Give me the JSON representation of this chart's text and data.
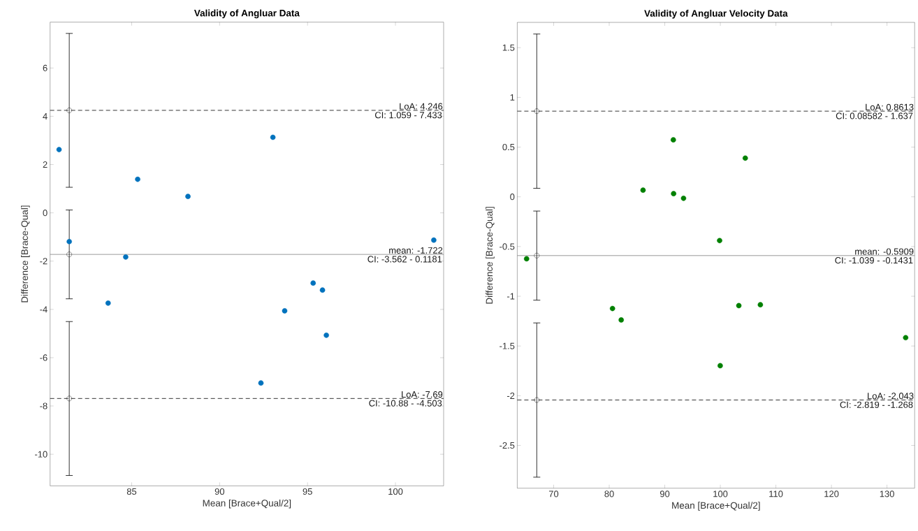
{
  "chart_data": [
    {
      "type": "scatter",
      "title": "Validity of Angluar Data",
      "xlabel": "Mean [Brace+Qual/2]",
      "ylabel": "Difference [Brace-Qual]",
      "xlim": [
        80.36,
        102.74
      ],
      "ylim": [
        -11.31,
        7.9
      ],
      "xticks": [
        85,
        90,
        95,
        100
      ],
      "yticks": [
        -10,
        -8,
        -6,
        -4,
        -2,
        0,
        2,
        4,
        6
      ],
      "grid": false,
      "series": [
        {
          "color": "#0072bd",
          "marker": "circle",
          "x": [
            80.87,
            81.45,
            85.34,
            88.2,
            93.03,
            102.18,
            84.66,
            83.66,
            95.32,
            95.85,
            93.7,
            96.07,
            92.35
          ],
          "values": [
            2.62,
            -1.19,
            1.39,
            0.68,
            3.13,
            -1.13,
            -1.83,
            -3.74,
            -2.91,
            -3.2,
            -4.06,
            -5.07,
            -7.05
          ]
        },
        {
          "color": "#000000",
          "marker": "circle",
          "x": [
            81.45,
            81.45,
            81.45
          ],
          "values": [
            4.246,
            -1.722,
            -7.69
          ],
          "errors": [
            [
              1.059,
              7.433
            ],
            [
              -3.562,
              0.1181
            ],
            [
              -10.88,
              -4.503
            ]
          ]
        }
      ],
      "ref_lines": [
        {
          "axis": "y",
          "value": 4.246,
          "label": "LoA: 4.246",
          "color": "#000000",
          "line_style": "dashed"
        },
        {
          "axis": "y",
          "value": -1.722,
          "label": "mean: -1.722",
          "color": "#808080",
          "line_style": "solid"
        },
        {
          "axis": "y",
          "value": -7.69,
          "label": "LoA: -7.69",
          "color": "#000000",
          "line_style": "dashed"
        }
      ],
      "annotations": [
        {
          "text": "CI: 1.059 - 7.433",
          "y": 4.246
        },
        {
          "text": "CI: -3.562 - 0.1181",
          "y": -1.722
        },
        {
          "text": "CI: -10.88 - -4.503",
          "y": -7.69
        }
      ]
    },
    {
      "type": "scatter",
      "title": "Validity of Angluar Velocity Data",
      "xlabel": "Mean [Brace+Qual/2]",
      "ylabel": "Difference [Brace-Qual]",
      "xlim": [
        63.45,
        134.98
      ],
      "ylim": [
        -2.93,
        1.754
      ],
      "xticks": [
        70,
        80,
        90,
        100,
        110,
        120,
        130
      ],
      "yticks": [
        -2.5,
        -2,
        -1.5,
        -1,
        -0.5,
        0,
        0.5,
        1,
        1.5
      ],
      "grid": false,
      "series": [
        {
          "color": "#008000",
          "marker": "circle",
          "x": [
            86.09,
            91.54,
            91.59,
            93.38,
            104.49,
            99.87,
            65.13,
            80.59,
            82.16,
            103.33,
            107.21,
            99.98,
            133.36
          ],
          "values": [
            0.067,
            0.573,
            0.032,
            -0.015,
            0.389,
            -0.44,
            -0.623,
            -1.123,
            -1.238,
            -1.094,
            -1.085,
            -1.698,
            -1.416
          ]
        },
        {
          "color": "#000000",
          "marker": "circle",
          "x": [
            66.96,
            66.96,
            66.96
          ],
          "values": [
            0.8613,
            -0.5909,
            -2.043
          ],
          "errors": [
            [
              0.08582,
              1.637
            ],
            [
              -1.039,
              -0.1431
            ],
            [
              -2.819,
              -1.268
            ]
          ]
        }
      ],
      "ref_lines": [
        {
          "axis": "y",
          "value": 0.8613,
          "label": "LoA: 0.8613",
          "color": "#000000",
          "line_style": "dashed"
        },
        {
          "axis": "y",
          "value": -0.5909,
          "label": "mean: -0.5909",
          "color": "#808080",
          "line_style": "solid"
        },
        {
          "axis": "y",
          "value": -2.043,
          "label": "LoA: -2.043",
          "color": "#000000",
          "line_style": "dashed"
        }
      ],
      "annotations": [
        {
          "text": "CI: 0.08582 - 1.637",
          "y": 0.8613
        },
        {
          "text": "CI: -1.039 - -0.1431",
          "y": -0.5909
        },
        {
          "text": "CI: -2.819 - -1.268",
          "y": -2.043
        }
      ]
    }
  ]
}
